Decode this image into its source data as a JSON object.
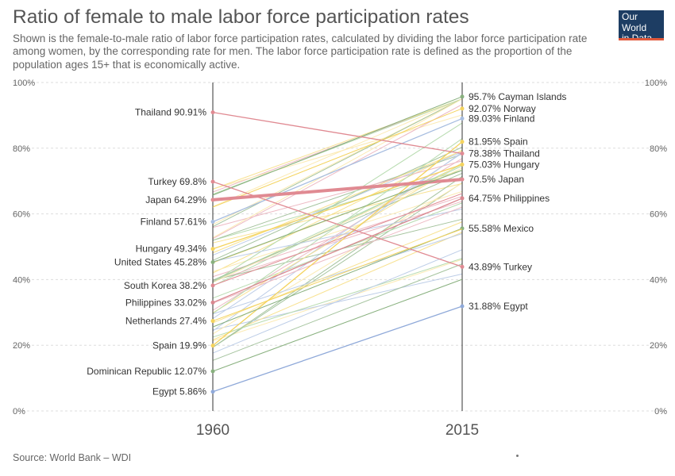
{
  "header": {
    "title": "Ratio of female to male labor force participation rates",
    "subtitle": "Shown is the female-to-male ratio of labor force participation rates, calculated by dividing the labor force participation rate among women, by the corresponding rate for men. The labor force participation rate is defined as the proportion of the population ages 15+ that is economically active.",
    "logo_line1": "Our World",
    "logo_line2": "in Data"
  },
  "footer": {
    "source": "Source: World Bank – WDI"
  },
  "colors": {
    "grid": "#dddddd",
    "axis": "#333333",
    "highlight": "#e08a92",
    "background_lines": [
      "#f6d86b",
      "#fbe49a",
      "#9fcf95",
      "#88b07e",
      "#a7bde0",
      "#e7a3b0"
    ]
  },
  "chart_data": {
    "type": "slope",
    "x": [
      "1960",
      "2015"
    ],
    "ylim": [
      0,
      100
    ],
    "yticks": [
      "0%",
      "20%",
      "40%",
      "60%",
      "80%",
      "100%"
    ],
    "grid": true,
    "series": [
      {
        "name": "Cayman Islands",
        "values": [
          null,
          95.7
        ],
        "label_1960": "",
        "label_2015": "95.7% Cayman Islands",
        "color": "#88b07e"
      },
      {
        "name": "Norway",
        "values": [
          null,
          92.07
        ],
        "label_1960": "",
        "label_2015": "92.07% Norway",
        "color": "#f4d35e"
      },
      {
        "name": "Finland",
        "values": [
          57.61,
          89.03
        ],
        "label_1960": "Finland 57.61%",
        "label_2015": "89.03% Finland",
        "color": "#a7bde0"
      },
      {
        "name": "Spain",
        "values": [
          19.9,
          81.95
        ],
        "label_1960": "Spain 19.9%",
        "label_2015": "81.95% Spain",
        "color": "#f4d35e"
      },
      {
        "name": "Thailand",
        "values": [
          90.91,
          78.38
        ],
        "label_1960": "Thailand 90.91%",
        "label_2015": "78.38% Thailand",
        "color": "#e08a92"
      },
      {
        "name": "Hungary",
        "values": [
          49.34,
          75.03
        ],
        "label_1960": "Hungary 49.34%",
        "label_2015": "75.03% Hungary",
        "color": "#f4d35e"
      },
      {
        "name": "Japan",
        "values": [
          64.29,
          70.5
        ],
        "label_1960": "Japan 64.29%",
        "label_2015": "70.5% Japan",
        "color": "#e08a92",
        "highlight": true
      },
      {
        "name": "Philippines",
        "values": [
          33.02,
          64.75
        ],
        "label_1960": "Philippines 33.02%",
        "label_2015": "64.75% Philippines",
        "color": "#d9878f"
      },
      {
        "name": "Mexico",
        "values": [
          null,
          55.58
        ],
        "label_1960": "",
        "label_2015": "55.58% Mexico",
        "color": "#88b07e"
      },
      {
        "name": "Turkey",
        "values": [
          69.8,
          43.89
        ],
        "label_1960": "Turkey 69.8%",
        "label_2015": "43.89% Turkey",
        "color": "#e08a92"
      },
      {
        "name": "Egypt",
        "values": [
          5.86,
          31.88
        ],
        "label_1960": "Egypt 5.86%",
        "label_2015": "31.88% Egypt",
        "color": "#8fa9d9"
      },
      {
        "name": "United States",
        "values": [
          45.28,
          null
        ],
        "label_1960": "United States 45.28%",
        "label_2015": "",
        "color": "#88b07e"
      },
      {
        "name": "South Korea",
        "values": [
          38.2,
          null
        ],
        "label_1960": "South Korea 38.2%",
        "label_2015": "",
        "color": "#e08a92"
      },
      {
        "name": "Netherlands",
        "values": [
          27.4,
          null
        ],
        "label_1960": "Netherlands 27.4%",
        "label_2015": "",
        "color": "#f4d35e"
      },
      {
        "name": "Dominican Republic",
        "values": [
          12.07,
          null
        ],
        "label_1960": "Dominican Republic 12.07%",
        "label_2015": "",
        "color": "#88b07e"
      }
    ]
  }
}
